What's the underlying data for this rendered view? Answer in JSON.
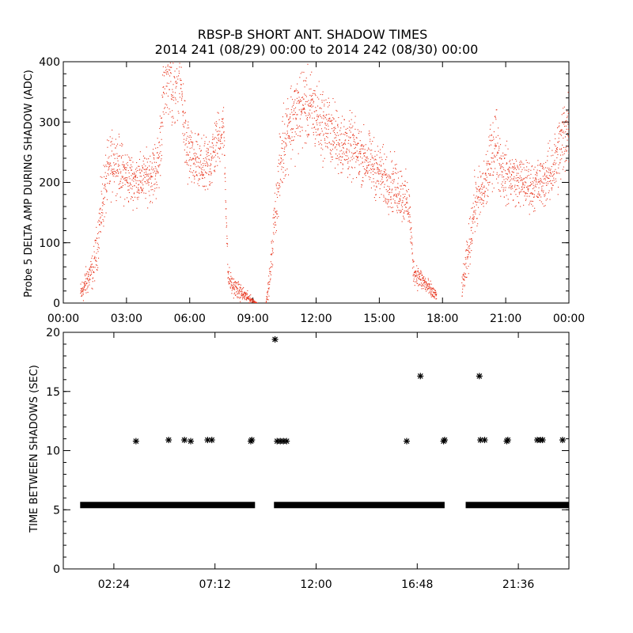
{
  "title": {
    "line1": "RBSP-B SHORT ANT. SHADOW TIMES",
    "line2": "2014 241 (08/29) 00:00 to 2014 242 (08/30) 00:00"
  },
  "colors": {
    "red": "#e8341c",
    "black": "#000000"
  },
  "chart_data": [
    {
      "type": "scatter",
      "ylabel": "Probe 5 DELTA AMP DURING SHADOW (ADC)",
      "xlabel": "",
      "xlim": [
        0,
        24
      ],
      "ylim": [
        0,
        400
      ],
      "xtick_labels": [
        "00:00",
        "03:00",
        "06:00",
        "09:00",
        "12:00",
        "15:00",
        "18:00",
        "21:00",
        "00:00"
      ],
      "xtick_values": [
        0,
        3,
        6,
        9,
        12,
        15,
        18,
        21,
        24
      ],
      "ytick_labels": [
        "0",
        "100",
        "200",
        "300",
        "400"
      ],
      "ytick_values": [
        0,
        100,
        200,
        300,
        400
      ],
      "color": "#e8341c",
      "marker": "dot",
      "envelope": {
        "x_hours": [
          0.8,
          1.0,
          1.2,
          1.4,
          1.6,
          1.8,
          2.0,
          2.2,
          2.4,
          2.6,
          2.8,
          3.0,
          3.3,
          3.6,
          3.9,
          4.2,
          4.5,
          4.8,
          5.0,
          5.2,
          5.5,
          5.8,
          6.1,
          6.4,
          6.7,
          7.0,
          7.3,
          7.6,
          7.8,
          8.0,
          8.4,
          8.8,
          9.2,
          9.6,
          9.8,
          10.0,
          10.2,
          10.4,
          10.7,
          11.0,
          11.4,
          11.8,
          12.2,
          12.6,
          13.0,
          13.5,
          14.0,
          14.5,
          15.0,
          15.5,
          16.0,
          16.4,
          16.6,
          16.8,
          17.1,
          17.4,
          17.7,
          18.9,
          19.1,
          19.3,
          19.5,
          19.7,
          19.9,
          20.1,
          20.3,
          20.5,
          20.7,
          20.9,
          21.2,
          21.5,
          21.8,
          22.1,
          22.4,
          22.7,
          23.0,
          23.3,
          23.6,
          24.0
        ],
        "y_median": [
          15,
          30,
          45,
          55,
          100,
          160,
          200,
          225,
          240,
          230,
          215,
          210,
          205,
          205,
          210,
          215,
          230,
          370,
          380,
          350,
          390,
          260,
          235,
          230,
          220,
          240,
          270,
          290,
          45,
          30,
          18,
          8,
          0,
          0,
          45,
          140,
          200,
          260,
          300,
          310,
          330,
          320,
          300,
          290,
          270,
          260,
          250,
          235,
          215,
          200,
          185,
          160,
          55,
          45,
          35,
          22,
          12,
          25,
          60,
          110,
          165,
          175,
          185,
          210,
          245,
          270,
          235,
          215,
          210,
          205,
          200,
          195,
          195,
          200,
          210,
          230,
          260,
          300
        ],
        "spread": [
          15,
          18,
          20,
          22,
          30,
          40,
          40,
          40,
          35,
          35,
          35,
          35,
          30,
          30,
          30,
          35,
          40,
          50,
          40,
          60,
          40,
          50,
          35,
          35,
          35,
          40,
          35,
          30,
          15,
          12,
          10,
          6,
          0,
          0,
          20,
          30,
          40,
          50,
          50,
          50,
          50,
          45,
          45,
          40,
          40,
          40,
          35,
          35,
          35,
          35,
          35,
          30,
          15,
          15,
          12,
          10,
          8,
          12,
          25,
          30,
          35,
          35,
          35,
          40,
          40,
          50,
          40,
          35,
          35,
          30,
          30,
          30,
          30,
          30,
          35,
          40,
          50,
          55
        ]
      }
    },
    {
      "type": "scatter",
      "ylabel": "TIME BETWEEN SHADOWS (SEC)",
      "xlabel": "",
      "xlim": [
        0,
        24
      ],
      "ylim": [
        0,
        20
      ],
      "xtick_labels": [
        "02:24",
        "07:12",
        "12:00",
        "16:48",
        "21:36"
      ],
      "xtick_values": [
        2.4,
        7.2,
        12.0,
        16.8,
        21.6
      ],
      "ytick_labels": [
        "0",
        "5",
        "10",
        "15",
        "20"
      ],
      "ytick_values": [
        0,
        5,
        10,
        15,
        20
      ],
      "color": "#000000",
      "marker": "asterisk",
      "baseline_value": 5.4,
      "baseline_segments": [
        [
          0.8,
          9.1
        ],
        [
          10.0,
          18.1
        ],
        [
          19.1,
          24.0
        ]
      ],
      "points": [
        [
          3.45,
          10.8
        ],
        [
          5.0,
          10.9
        ],
        [
          5.75,
          10.9
        ],
        [
          6.05,
          10.8
        ],
        [
          6.85,
          10.9
        ],
        [
          7.05,
          10.9
        ],
        [
          8.9,
          10.8
        ],
        [
          8.95,
          10.9
        ],
        [
          10.05,
          19.4
        ],
        [
          10.15,
          10.8
        ],
        [
          10.3,
          10.8
        ],
        [
          10.45,
          10.8
        ],
        [
          10.6,
          10.8
        ],
        [
          16.3,
          10.8
        ],
        [
          16.95,
          16.3
        ],
        [
          18.05,
          10.8
        ],
        [
          18.1,
          10.9
        ],
        [
          19.75,
          16.3
        ],
        [
          19.8,
          10.9
        ],
        [
          20.0,
          10.9
        ],
        [
          21.05,
          10.8
        ],
        [
          21.1,
          10.9
        ],
        [
          22.5,
          10.9
        ],
        [
          22.65,
          10.9
        ],
        [
          22.75,
          10.9
        ],
        [
          23.7,
          10.9
        ]
      ]
    }
  ]
}
